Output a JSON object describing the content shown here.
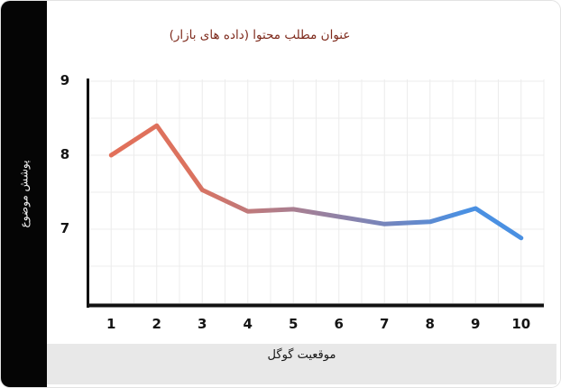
{
  "header": {
    "title": "عنوان مطلب محتوا (داده های بازار)"
  },
  "sidebar": {
    "label": "پوشش موضوع"
  },
  "footer": {
    "label": "موقعیت گوگل"
  },
  "colors": {
    "title_text": "#7e2a1c",
    "sidebar_bg": "#050505",
    "sidebar_text": "#f5f5f5",
    "footer_bg": "#e8e8e8",
    "grid": "#ececec",
    "axis": "#111111",
    "line_start": "#e2705a",
    "line_end": "#4a90e2",
    "gradient_stops": [
      [
        "0%",
        "#e2705a"
      ],
      [
        "20%",
        "#db725f"
      ],
      [
        "45%",
        "#a87f92"
      ],
      [
        "70%",
        "#6e86c2"
      ],
      [
        "86%",
        "#4a90e2"
      ],
      [
        "100%",
        "#4a90e2"
      ]
    ]
  },
  "chart_data": {
    "type": "line",
    "title": "عنوان مطلب محتوا (داده های بازار)",
    "xlabel": "موقعیت گوگل",
    "ylabel": "پوشش موضوع",
    "x": [
      1,
      2,
      3,
      4,
      5,
      6,
      7,
      8,
      9,
      10
    ],
    "values": [
      8.0,
      8.4,
      7.53,
      7.24,
      7.27,
      7.17,
      7.07,
      7.1,
      7.28,
      6.88
    ],
    "xlim": [
      0.5,
      10.5
    ],
    "ylim": [
      6,
      9
    ],
    "x_tick_labels": [
      "1",
      "2",
      "3",
      "4",
      "5",
      "6",
      "7",
      "8",
      "9",
      "10"
    ],
    "y_tick_labels": [
      "9",
      "8",
      "7"
    ],
    "y_tick_values": [
      9,
      8,
      7
    ],
    "grid": true,
    "grid_step_x": 0.5,
    "grid_step_y": 0.5,
    "legend": false
  }
}
